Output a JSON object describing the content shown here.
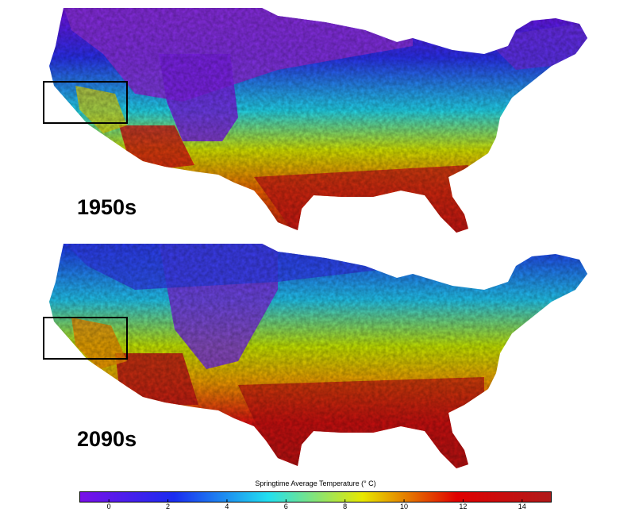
{
  "maps": [
    {
      "id": "1950",
      "label": "1950s",
      "warming": 0
    },
    {
      "id": "2090",
      "label": "2090s",
      "warming": 2.6
    }
  ],
  "colorbar": {
    "title": "Springtime Average Temperature (° C)",
    "min": -1,
    "max": 15,
    "ticks": [
      0,
      2,
      4,
      6,
      8,
      10,
      12,
      14
    ],
    "tick_labels": [
      "0",
      "2",
      "4",
      "6",
      "8",
      "10",
      "12",
      "14"
    ],
    "stops": [
      "#7a10e8",
      "#1a2cf0",
      "#22e0f0",
      "#e8e800",
      "#e00000",
      "#b01a1a"
    ]
  },
  "highlight_box": {
    "label": "",
    "region": "california-coast"
  },
  "colors": {
    "outline": "#000000",
    "background": "#ffffff"
  }
}
